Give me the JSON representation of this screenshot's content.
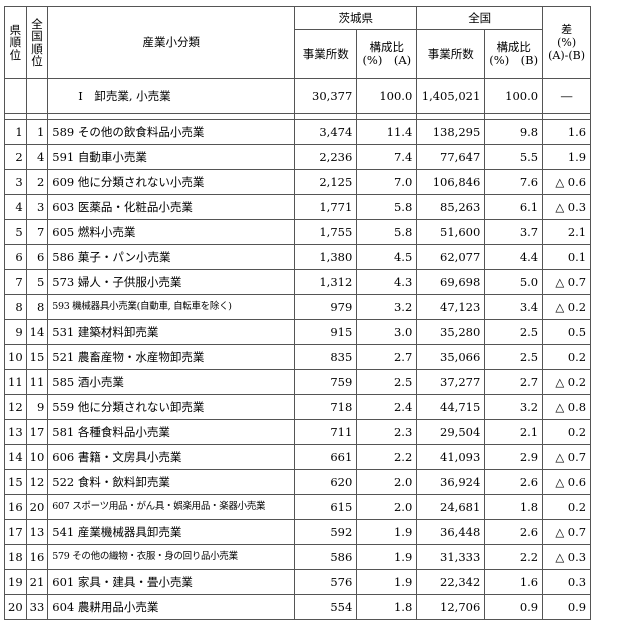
{
  "header": {
    "pref_rank": "県\n順\n位",
    "nat_rank": "全\n国\n順\n位",
    "category": "産業小分類",
    "ibaraki": "茨城県",
    "national": "全国",
    "establishments": "事業所数",
    "ratio_a": "構成比\n(%)　(A)",
    "ratio_b": "構成比\n(%)　(B)",
    "diff": "差\n(%)\n(A)-(B)"
  },
  "total": {
    "name": "Ⅰ　卸売業, 小売業",
    "ib_count": "30,377",
    "ib_ratio": "100.0",
    "jp_count": "1,405,021",
    "jp_ratio": "100.0",
    "diff": "―"
  },
  "rows": [
    {
      "pr": "1",
      "nr": "1",
      "name": "589 その他の飲食料品小売業",
      "ic": "3,474",
      "ir": "11.4",
      "jc": "138,295",
      "jr": "9.8",
      "d": "1.6"
    },
    {
      "pr": "2",
      "nr": "4",
      "name": "591 自動車小売業",
      "ic": "2,236",
      "ir": "7.4",
      "jc": "77,647",
      "jr": "5.5",
      "d": "1.9"
    },
    {
      "pr": "3",
      "nr": "2",
      "name": "609 他に分類されない小売業",
      "ic": "2,125",
      "ir": "7.0",
      "jc": "106,846",
      "jr": "7.6",
      "d": "△ 0.6"
    },
    {
      "pr": "4",
      "nr": "3",
      "name": "603 医薬品・化粧品小売業",
      "ic": "1,771",
      "ir": "5.8",
      "jc": "85,263",
      "jr": "6.1",
      "d": "△ 0.3"
    },
    {
      "pr": "5",
      "nr": "7",
      "name": "605 燃料小売業",
      "ic": "1,755",
      "ir": "5.8",
      "jc": "51,600",
      "jr": "3.7",
      "d": "2.1"
    },
    {
      "pr": "6",
      "nr": "6",
      "name": "586 菓子・パン小売業",
      "ic": "1,380",
      "ir": "4.5",
      "jc": "62,077",
      "jr": "4.4",
      "d": "0.1"
    },
    {
      "pr": "7",
      "nr": "5",
      "name": "573 婦人・子供服小売業",
      "ic": "1,312",
      "ir": "4.3",
      "jc": "69,698",
      "jr": "5.0",
      "d": "△ 0.7"
    },
    {
      "pr": "8",
      "nr": "8",
      "name": "593 機械器具小売業(自動車, 自転車を除く)",
      "ic": "979",
      "ir": "3.2",
      "jc": "47,123",
      "jr": "3.4",
      "d": "△ 0.2",
      "small": true
    },
    {
      "pr": "9",
      "nr": "14",
      "name": "531 建築材料卸売業",
      "ic": "915",
      "ir": "3.0",
      "jc": "35,280",
      "jr": "2.5",
      "d": "0.5"
    },
    {
      "pr": "10",
      "nr": "15",
      "name": "521 農畜産物・水産物卸売業",
      "ic": "835",
      "ir": "2.7",
      "jc": "35,066",
      "jr": "2.5",
      "d": "0.2"
    },
    {
      "pr": "11",
      "nr": "11",
      "name": "585 酒小売業",
      "ic": "759",
      "ir": "2.5",
      "jc": "37,277",
      "jr": "2.7",
      "d": "△ 0.2"
    },
    {
      "pr": "12",
      "nr": "9",
      "name": "559 他に分類されない卸売業",
      "ic": "718",
      "ir": "2.4",
      "jc": "44,715",
      "jr": "3.2",
      "d": "△ 0.8"
    },
    {
      "pr": "13",
      "nr": "17",
      "name": "581 各種食料品小売業",
      "ic": "711",
      "ir": "2.3",
      "jc": "29,504",
      "jr": "2.1",
      "d": "0.2"
    },
    {
      "pr": "14",
      "nr": "10",
      "name": "606 書籍・文房具小売業",
      "ic": "661",
      "ir": "2.2",
      "jc": "41,093",
      "jr": "2.9",
      "d": "△ 0.7"
    },
    {
      "pr": "15",
      "nr": "12",
      "name": "522 食料・飲料卸売業",
      "ic": "620",
      "ir": "2.0",
      "jc": "36,924",
      "jr": "2.6",
      "d": "△ 0.6"
    },
    {
      "pr": "16",
      "nr": "20",
      "name": "607 スポーツ用品・がん具・娯楽用品・楽器小売業",
      "ic": "615",
      "ir": "2.0",
      "jc": "24,681",
      "jr": "1.8",
      "d": "0.2",
      "small": true
    },
    {
      "pr": "17",
      "nr": "13",
      "name": "541 産業機械器具卸売業",
      "ic": "592",
      "ir": "1.9",
      "jc": "36,448",
      "jr": "2.6",
      "d": "△ 0.7"
    },
    {
      "pr": "18",
      "nr": "16",
      "name": "579 その他の織物・衣服・身の回り品小売業",
      "ic": "586",
      "ir": "1.9",
      "jc": "31,333",
      "jr": "2.2",
      "d": "△ 0.3",
      "small": true
    },
    {
      "pr": "19",
      "nr": "21",
      "name": "601 家具・建具・畳小売業",
      "ic": "576",
      "ir": "1.9",
      "jc": "22,342",
      "jr": "1.6",
      "d": "0.3"
    },
    {
      "pr": "20",
      "nr": "33",
      "name": "604 農耕用品小売業",
      "ic": "554",
      "ir": "1.8",
      "jc": "12,706",
      "jr": "0.9",
      "d": "0.9"
    }
  ]
}
